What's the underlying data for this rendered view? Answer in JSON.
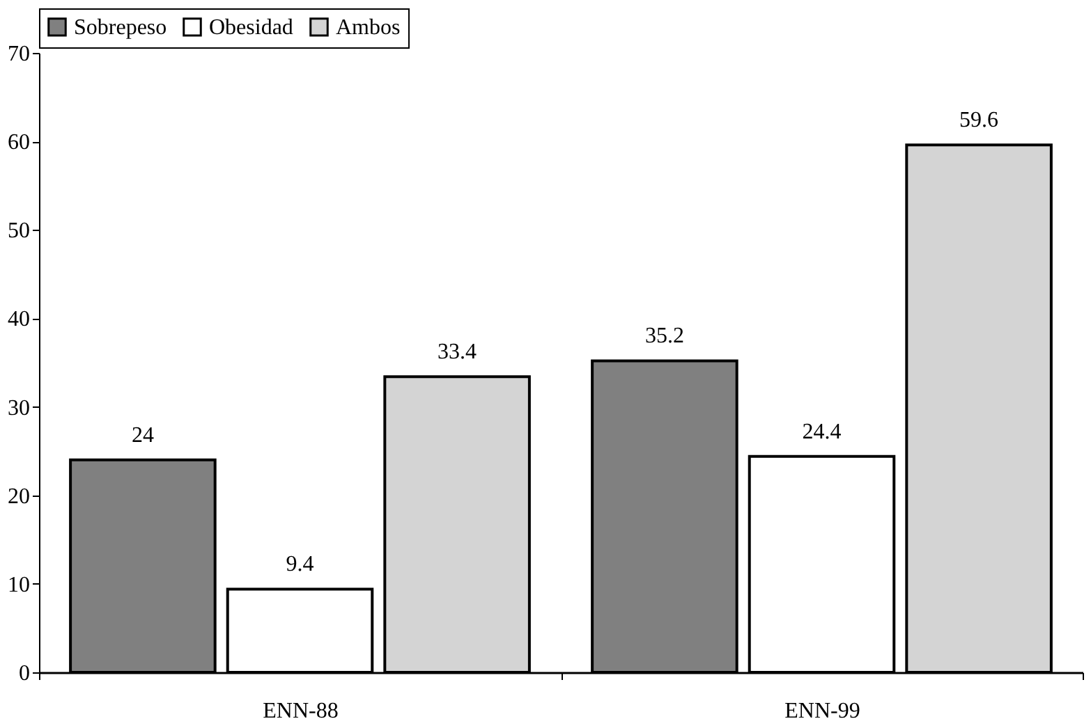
{
  "chart_data": {
    "type": "bar",
    "categories": [
      "ENN-88",
      "ENN-99"
    ],
    "series": [
      {
        "name": "Sobrepeso",
        "color": "#808080",
        "values": [
          24,
          35.2
        ]
      },
      {
        "name": "Obesidad",
        "color": "#ffffff",
        "values": [
          9.4,
          24.4
        ]
      },
      {
        "name": "Ambos",
        "color": "#d4d4d4",
        "values": [
          33.4,
          59.6
        ]
      }
    ],
    "ylim": [
      0,
      70
    ],
    "yticks": [
      0,
      10,
      20,
      30,
      40,
      50,
      60,
      70
    ],
    "data_labels": true,
    "grid": false,
    "legend": "top"
  }
}
